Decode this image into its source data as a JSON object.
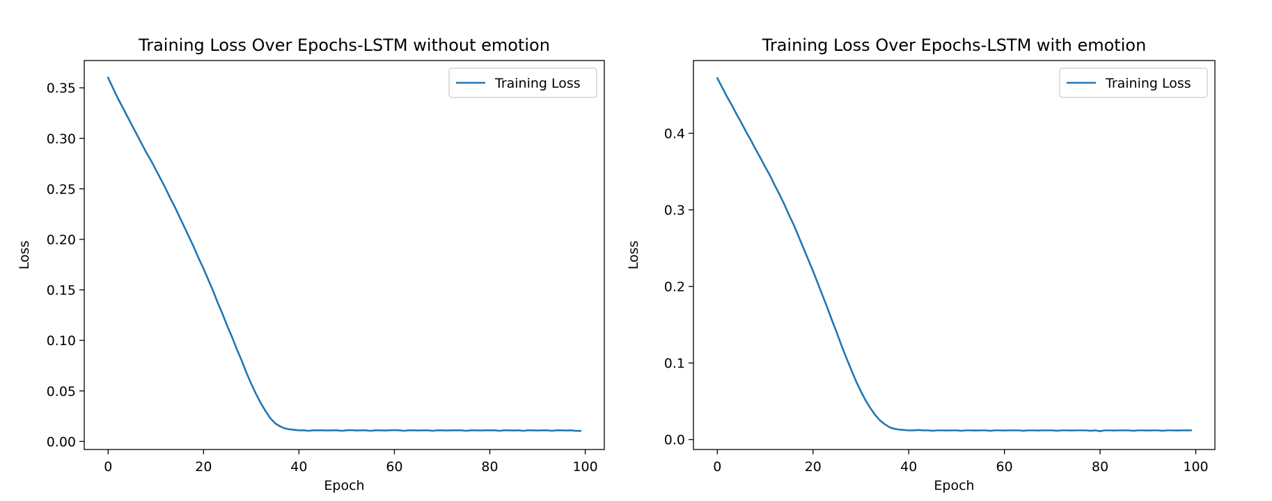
{
  "chart_data": [
    {
      "type": "line",
      "title": "Training Loss Over Epochs-LSTM without emotion",
      "xlabel": "Epoch",
      "ylabel": "Loss",
      "xlim": [
        -5,
        104
      ],
      "ylim": [
        -0.008,
        0.377
      ],
      "xticks": [
        0,
        20,
        40,
        60,
        80,
        100
      ],
      "xtick_labels": [
        "0",
        "20",
        "40",
        "60",
        "80",
        "100"
      ],
      "yticks": [
        0.0,
        0.05,
        0.1,
        0.15,
        0.2,
        0.25,
        0.3,
        0.35
      ],
      "ytick_labels": [
        "0.00",
        "0.05",
        "0.10",
        "0.15",
        "0.20",
        "0.25",
        "0.30",
        "0.35"
      ],
      "legend_position": "top-right",
      "grid": false,
      "series": [
        {
          "name": "Training Loss",
          "color": "#1f77b4",
          "x": [
            0,
            1,
            2,
            3,
            4,
            5,
            6,
            7,
            8,
            9,
            10,
            11,
            12,
            13,
            14,
            15,
            16,
            17,
            18,
            19,
            20,
            21,
            22,
            23,
            24,
            25,
            26,
            27,
            28,
            29,
            30,
            31,
            32,
            33,
            34,
            35,
            36,
            37,
            38,
            39,
            40,
            41,
            42,
            43,
            44,
            45,
            46,
            47,
            48,
            49,
            50,
            51,
            52,
            53,
            54,
            55,
            56,
            57,
            58,
            59,
            60,
            61,
            62,
            63,
            64,
            65,
            66,
            67,
            68,
            69,
            70,
            71,
            72,
            73,
            74,
            75,
            76,
            77,
            78,
            79,
            80,
            81,
            82,
            83,
            84,
            85,
            86,
            87,
            88,
            89,
            90,
            91,
            92,
            93,
            94,
            95,
            96,
            97,
            98,
            99
          ],
          "values": [
            0.36,
            0.35,
            0.34,
            0.331,
            0.322,
            0.313,
            0.304,
            0.295,
            0.286,
            0.278,
            0.269,
            0.26,
            0.251,
            0.241,
            0.232,
            0.222,
            0.212,
            0.202,
            0.192,
            0.181,
            0.171,
            0.16,
            0.149,
            0.137,
            0.126,
            0.114,
            0.103,
            0.091,
            0.08,
            0.068,
            0.057,
            0.047,
            0.038,
            0.03,
            0.023,
            0.018,
            0.015,
            0.013,
            0.012,
            0.0115,
            0.011,
            0.011,
            0.0105,
            0.011,
            0.011,
            0.011,
            0.0108,
            0.011,
            0.011,
            0.0105,
            0.011,
            0.0112,
            0.0108,
            0.011,
            0.011,
            0.0105,
            0.011,
            0.011,
            0.0108,
            0.011,
            0.0112,
            0.011,
            0.0105,
            0.011,
            0.011,
            0.0108,
            0.011,
            0.011,
            0.0105,
            0.011,
            0.011,
            0.0108,
            0.011,
            0.011,
            0.011,
            0.0105,
            0.011,
            0.011,
            0.0108,
            0.011,
            0.011,
            0.011,
            0.0105,
            0.011,
            0.011,
            0.0108,
            0.011,
            0.0105,
            0.011,
            0.011,
            0.0108,
            0.011,
            0.011,
            0.0105,
            0.011,
            0.011,
            0.0108,
            0.011,
            0.0105,
            0.0105
          ]
        }
      ]
    },
    {
      "type": "line",
      "title": "Training Loss Over Epochs-LSTM with emotion",
      "xlabel": "Epoch",
      "ylabel": "Loss",
      "xlim": [
        -5,
        104
      ],
      "ylim": [
        -0.013,
        0.495
      ],
      "xticks": [
        0,
        20,
        40,
        60,
        80,
        100
      ],
      "xtick_labels": [
        "0",
        "20",
        "40",
        "60",
        "80",
        "100"
      ],
      "yticks": [
        0.0,
        0.1,
        0.2,
        0.3,
        0.4
      ],
      "ytick_labels": [
        "0.0",
        "0.1",
        "0.2",
        "0.3",
        "0.4"
      ],
      "legend_position": "top-right",
      "grid": false,
      "series": [
        {
          "name": "Training Loss",
          "color": "#1f77b4",
          "x": [
            0,
            1,
            2,
            3,
            4,
            5,
            6,
            7,
            8,
            9,
            10,
            11,
            12,
            13,
            14,
            15,
            16,
            17,
            18,
            19,
            20,
            21,
            22,
            23,
            24,
            25,
            26,
            27,
            28,
            29,
            30,
            31,
            32,
            33,
            34,
            35,
            36,
            37,
            38,
            39,
            40,
            41,
            42,
            43,
            44,
            45,
            46,
            47,
            48,
            49,
            50,
            51,
            52,
            53,
            54,
            55,
            56,
            57,
            58,
            59,
            60,
            61,
            62,
            63,
            64,
            65,
            66,
            67,
            68,
            69,
            70,
            71,
            72,
            73,
            74,
            75,
            76,
            77,
            78,
            79,
            80,
            81,
            82,
            83,
            84,
            85,
            86,
            87,
            88,
            89,
            90,
            91,
            92,
            93,
            94,
            95,
            96,
            97,
            98,
            99
          ],
          "values": [
            0.472,
            0.46,
            0.448,
            0.437,
            0.425,
            0.414,
            0.402,
            0.391,
            0.379,
            0.368,
            0.356,
            0.345,
            0.332,
            0.32,
            0.307,
            0.293,
            0.28,
            0.265,
            0.25,
            0.235,
            0.22,
            0.204,
            0.188,
            0.172,
            0.155,
            0.139,
            0.122,
            0.106,
            0.091,
            0.076,
            0.063,
            0.051,
            0.041,
            0.032,
            0.025,
            0.02,
            0.016,
            0.014,
            0.013,
            0.0125,
            0.012,
            0.012,
            0.0125,
            0.012,
            0.012,
            0.0115,
            0.012,
            0.012,
            0.0118,
            0.012,
            0.012,
            0.0115,
            0.012,
            0.012,
            0.0118,
            0.012,
            0.012,
            0.0115,
            0.012,
            0.012,
            0.0118,
            0.012,
            0.012,
            0.012,
            0.0115,
            0.012,
            0.012,
            0.0118,
            0.012,
            0.012,
            0.012,
            0.0115,
            0.012,
            0.012,
            0.0118,
            0.012,
            0.012,
            0.012,
            0.0115,
            0.012,
            0.011,
            0.012,
            0.012,
            0.0118,
            0.012,
            0.012,
            0.012,
            0.0115,
            0.012,
            0.012,
            0.0118,
            0.012,
            0.012,
            0.0115,
            0.012,
            0.012,
            0.0118,
            0.012,
            0.012,
            0.012
          ]
        }
      ]
    }
  ]
}
